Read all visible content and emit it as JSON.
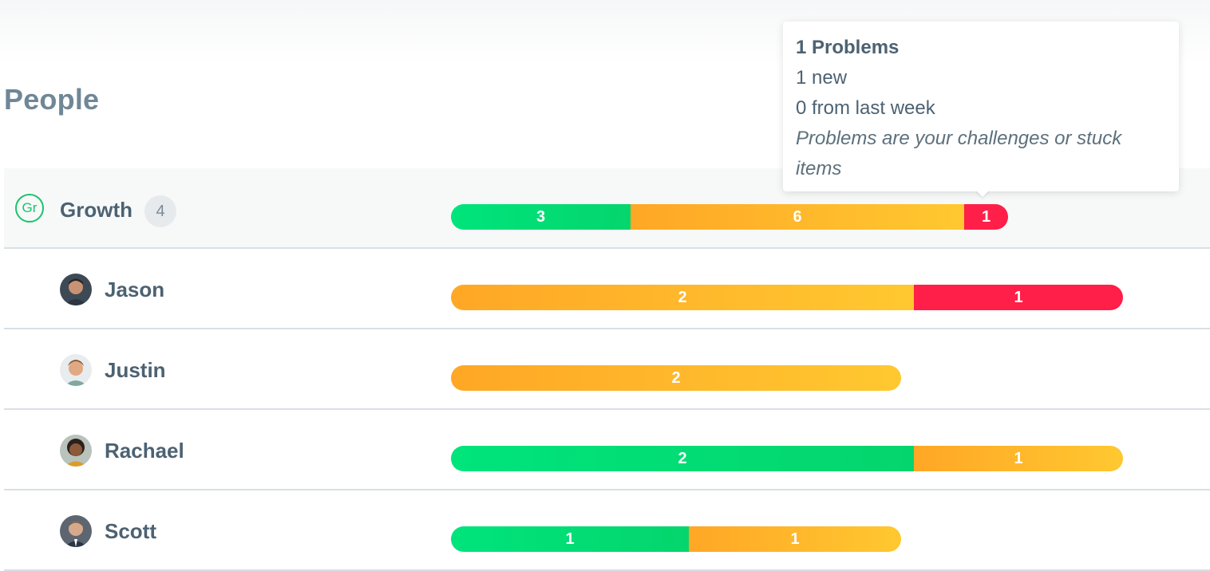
{
  "page": {
    "title": "People"
  },
  "team": {
    "badge": "Gr",
    "name": "Growth",
    "count": "4"
  },
  "team_bar": {
    "green": "3",
    "orange": "6",
    "red": "1"
  },
  "people": [
    {
      "name": "Jason",
      "bar": {
        "orange": "2",
        "red": "1"
      }
    },
    {
      "name": "Justin",
      "bar": {
        "orange": "2"
      }
    },
    {
      "name": "Rachael",
      "bar": {
        "green": "2",
        "orange": "1"
      }
    },
    {
      "name": "Scott",
      "bar": {
        "green": "1",
        "orange": "1"
      }
    }
  ],
  "tooltip": {
    "title": "1 Problems",
    "new_text": "1 new",
    "last_week_text": "0 from last week",
    "description": "Problems are your challenges or stuck items"
  },
  "colors": {
    "green": "#00e47c",
    "orange": "#ffb52b",
    "red": "#ff1f48",
    "team_accent": "#19c46b"
  }
}
